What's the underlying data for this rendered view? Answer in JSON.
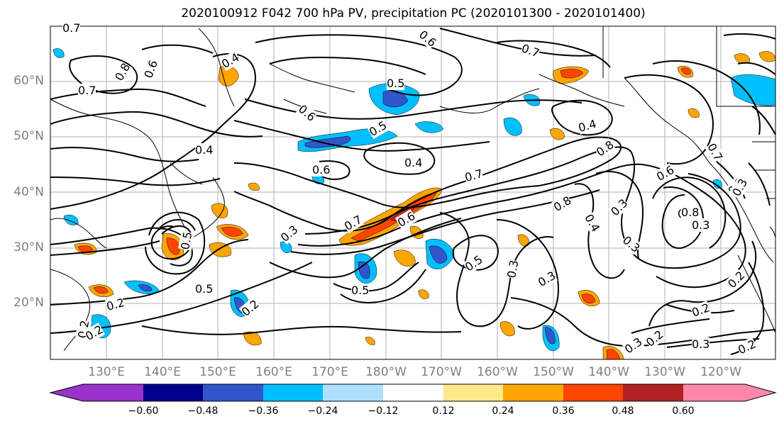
{
  "title": "2020100912 F042 700 hPa PV, precipitation PC (2020101300 - 2020101400)",
  "lat_labels": [
    "60°N",
    "50°N",
    "40°N",
    "30°N",
    "20°N"
  ],
  "lon_labels": [
    "130°E",
    "140°E",
    "150°E",
    "160°E",
    "170°E",
    "180°W",
    "170°W",
    "160°W",
    "150°W",
    "140°W",
    "130°W",
    "120°W"
  ],
  "colorbar": {
    "ticks": [
      "−0.60",
      "−0.48",
      "−0.36",
      "−0.24",
      "−0.12",
      "0.12",
      "0.24",
      "0.36",
      "0.48",
      "0.60"
    ],
    "colors": [
      "#9933cc",
      "#00008b",
      "#3355cc",
      "#00bfff",
      "#b0e0ff",
      "#ffffff",
      "#ffe98a",
      "#ffa500",
      "#ff4500",
      "#b22222",
      "#ff88aa"
    ]
  },
  "contour_labels": [
    "0.7",
    "0.6",
    "0.8",
    "0.8",
    "0.4",
    "0.6",
    "0.7",
    "0.7",
    "0.5",
    "0.6",
    "0.5",
    "0.4",
    "0.6",
    "0.4",
    "0.8",
    "0.4",
    "0.7",
    "0.6",
    "0.7",
    "0.5",
    "0.3",
    "0.6",
    "0.8",
    "0.3",
    "0.4",
    "0.3",
    "0.8",
    "0.3",
    "0.5",
    "0.3",
    "0.5",
    "0.5",
    "0.5",
    "0.2",
    "0.2",
    "0.2",
    "0.3",
    "0.3",
    "0.2",
    "0.2",
    "0.3",
    "0.3",
    "0.2",
    "0.2",
    "0.2",
    "0.7"
  ]
}
